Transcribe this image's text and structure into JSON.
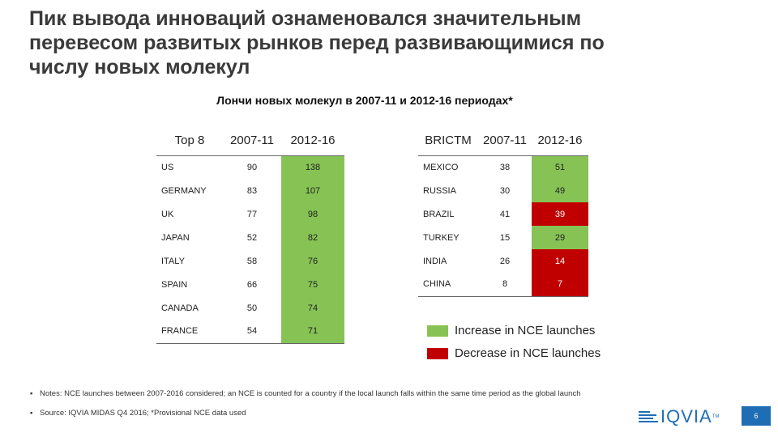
{
  "title": {
    "line1": "Пик вывода инноваций ознаменовался значительным",
    "line2": "перевесом развитых рынков перед развивающимися по",
    "line3": "числу новых молекул"
  },
  "subtitle": "Лончи новых молекул в 2007-11 и 2012-16 периодах*",
  "colors": {
    "increase": "#86c354",
    "decrease": "#c00000",
    "brand": "#1f6eb5"
  },
  "top8": {
    "headers": [
      "Top 8",
      "2007-11",
      "2012-16"
    ],
    "rows": [
      {
        "country": "US",
        "v2007": "90",
        "v2012": "138",
        "trend": "increase"
      },
      {
        "country": "GERMANY",
        "v2007": "83",
        "v2012": "107",
        "trend": "increase"
      },
      {
        "country": "UK",
        "v2007": "77",
        "v2012": "98",
        "trend": "increase"
      },
      {
        "country": "JAPAN",
        "v2007": "52",
        "v2012": "82",
        "trend": "increase"
      },
      {
        "country": "ITALY",
        "v2007": "58",
        "v2012": "76",
        "trend": "increase"
      },
      {
        "country": "SPAIN",
        "v2007": "66",
        "v2012": "75",
        "trend": "increase"
      },
      {
        "country": "CANADA",
        "v2007": "50",
        "v2012": "74",
        "trend": "increase"
      },
      {
        "country": "FRANCE",
        "v2007": "54",
        "v2012": "71",
        "trend": "increase"
      }
    ]
  },
  "brictm": {
    "headers": [
      "BRICTM",
      "2007-11",
      "2012-16"
    ],
    "rows": [
      {
        "country": "MEXICO",
        "v2007": "38",
        "v2012": "51",
        "trend": "increase"
      },
      {
        "country": "RUSSIA",
        "v2007": "30",
        "v2012": "49",
        "trend": "increase"
      },
      {
        "country": "BRAZIL",
        "v2007": "41",
        "v2012": "39",
        "trend": "decrease"
      },
      {
        "country": "TURKEY",
        "v2007": "15",
        "v2012": "29",
        "trend": "increase"
      },
      {
        "country": "INDIA",
        "v2007": "26",
        "v2012": "14",
        "trend": "decrease"
      },
      {
        "country": "CHINA",
        "v2007": "8",
        "v2012": "7",
        "trend": "decrease"
      }
    ]
  },
  "legend": {
    "increase": "Increase in NCE launches",
    "decrease": "Decrease in NCE launches"
  },
  "notes": {
    "note1": "Notes: NCE launches between 2007-2016 considered; an NCE is counted for a country if the local launch falls within the same time period as the global launch",
    "note2": "Source: IQVIA MIDAS Q4 2016; *Provisional NCE data used"
  },
  "footer": {
    "logo": "IQVIA",
    "logo_tm": "TM",
    "page": "6"
  }
}
